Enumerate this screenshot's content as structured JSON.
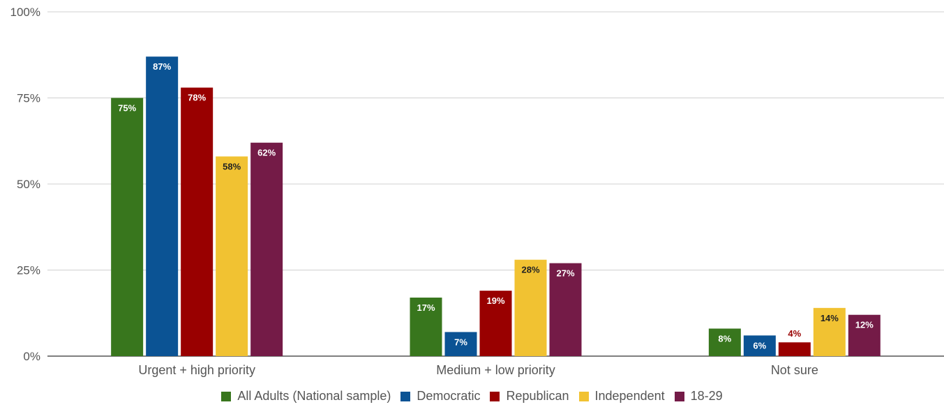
{
  "chart_data": {
    "type": "bar",
    "categories": [
      "Urgent + high priority",
      "Medium + low priority",
      "Not sure"
    ],
    "series": [
      {
        "name": "All Adults (National sample)",
        "values": [
          75,
          17,
          8
        ],
        "labels": [
          "75%",
          "17%",
          "8%"
        ],
        "color": "#38761d"
      },
      {
        "name": "Democratic",
        "values": [
          87,
          7,
          6
        ],
        "labels": [
          "87%",
          "7%",
          "6%"
        ],
        "color": "#0b5394"
      },
      {
        "name": "Republican",
        "values": [
          78,
          19,
          4
        ],
        "labels": [
          "78%",
          "19%",
          "4%"
        ],
        "color": "#990000"
      },
      {
        "name": "Independent",
        "values": [
          58,
          28,
          14
        ],
        "labels": [
          "58%",
          "28%",
          "14%"
        ],
        "color": "#f1c232"
      },
      {
        "name": "18-29",
        "values": [
          62,
          27,
          12
        ],
        "labels": [
          "62%",
          "27%",
          "12%"
        ],
        "color": "#741b47"
      }
    ],
    "yticks": [
      "0%",
      "25%",
      "50%",
      "75%",
      "100%"
    ],
    "ylim": [
      0,
      100
    ],
    "grid": true,
    "legend_position": "bottom",
    "title": "",
    "xlabel": "",
    "ylabel": ""
  }
}
